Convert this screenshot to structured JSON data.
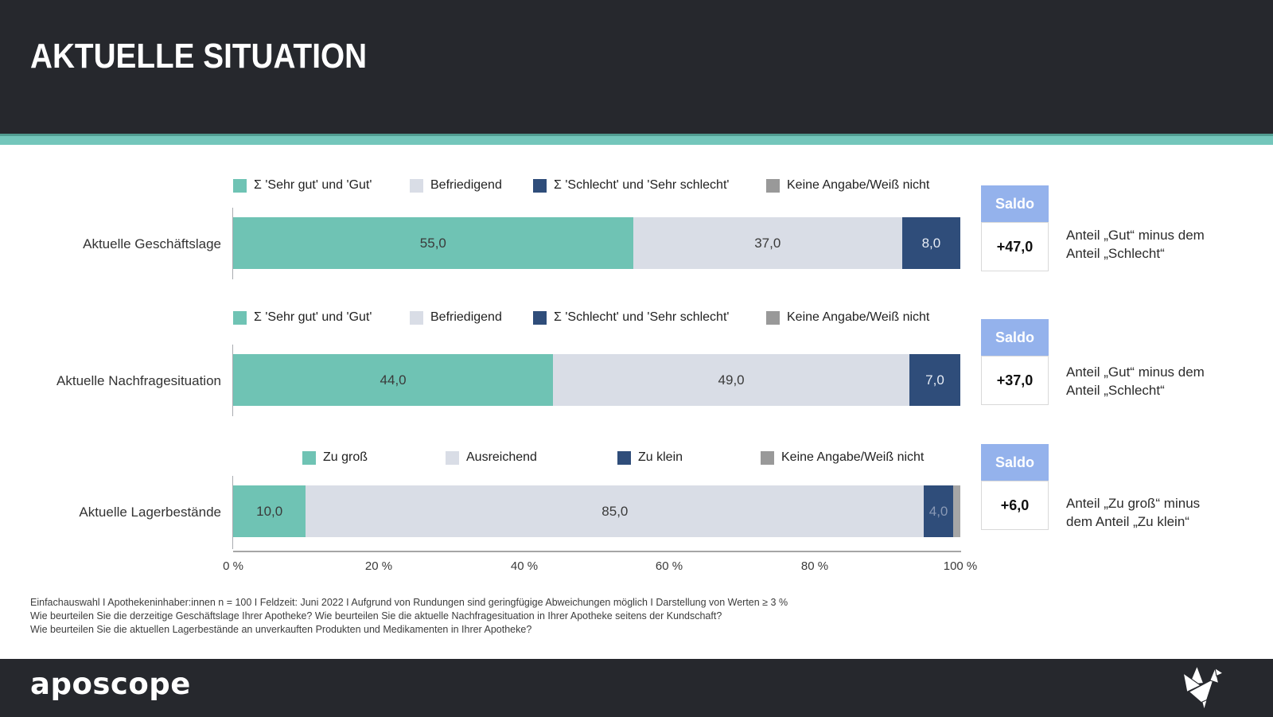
{
  "header": {
    "title": "AKTUELLE SITUATION"
  },
  "colors": {
    "header_bg": "#26282D",
    "accent_teal": "#74C6BB",
    "bar_positive": "#6FC3B4",
    "bar_neutral": "#D9DDE6",
    "bar_negative": "#2F4D7A",
    "bar_no_answer": "#A6A6A6",
    "legend_no_answer": "#999999",
    "saldo_header_bg": "#94B2EC"
  },
  "chart_data": {
    "type": "bar",
    "stacked": true,
    "orientation": "horizontal",
    "title": "AKTUELLE SITUATION",
    "x_axis": {
      "range": [
        0,
        100
      ],
      "unit": "%",
      "ticks": [
        "0 %",
        "20 %",
        "40 %",
        "60 %",
        "80 %",
        "100 %"
      ]
    },
    "rows": [
      {
        "category": "Aktuelle Geschäftslage",
        "legend": [
          {
            "label": "Σ 'Sehr gut' und 'Gut'",
            "color": "#6FC3B4"
          },
          {
            "label": "Befriedigend",
            "color": "#D9DDE6"
          },
          {
            "label": "Σ 'Schlecht' und 'Sehr schlecht'",
            "color": "#2F4D7A"
          },
          {
            "label": "Keine Angabe/Weiß nicht",
            "color": "#999999"
          }
        ],
        "segments": [
          {
            "name": "Σ 'Sehr gut' und 'Gut'",
            "value": 55,
            "label": "55,0"
          },
          {
            "name": "Befriedigend",
            "value": 37,
            "label": "37,0"
          },
          {
            "name": "Σ 'Schlecht' und 'Sehr schlecht'",
            "value": 8,
            "label": "8,0"
          }
        ],
        "saldo": {
          "header": "Saldo",
          "value": "+47,0"
        },
        "note_line1": "Anteil „Gut“ minus dem",
        "note_line2": "Anteil „Schlecht“"
      },
      {
        "category": "Aktuelle Nachfragesituation",
        "legend": [
          {
            "label": "Σ 'Sehr gut' und 'Gut'",
            "color": "#6FC3B4"
          },
          {
            "label": "Befriedigend",
            "color": "#D9DDE6"
          },
          {
            "label": "Σ 'Schlecht' und 'Sehr schlecht'",
            "color": "#2F4D7A"
          },
          {
            "label": "Keine Angabe/Weiß nicht",
            "color": "#999999"
          }
        ],
        "segments": [
          {
            "name": "Σ 'Sehr gut' und 'Gut'",
            "value": 44,
            "label": "44,0"
          },
          {
            "name": "Befriedigend",
            "value": 49,
            "label": "49,0"
          },
          {
            "name": "Σ 'Schlecht' und 'Sehr schlecht'",
            "value": 7,
            "label": "7,0"
          }
        ],
        "saldo": {
          "header": "Saldo",
          "value": "+37,0"
        },
        "note_line1": "Anteil „Gut“ minus dem",
        "note_line2": "Anteil „Schlecht“"
      },
      {
        "category": "Aktuelle Lagerbestände",
        "legend": [
          {
            "label": "Zu groß",
            "color": "#6FC3B4"
          },
          {
            "label": "Ausreichend",
            "color": "#D9DDE6"
          },
          {
            "label": "Zu klein",
            "color": "#2F4D7A"
          },
          {
            "label": "Keine Angabe/Weiß nicht",
            "color": "#999999"
          }
        ],
        "segments": [
          {
            "name": "Zu groß",
            "value": 10,
            "label": "10,0"
          },
          {
            "name": "Ausreichend",
            "value": 85,
            "label": "85,0"
          },
          {
            "name": "Zu klein",
            "value": 4,
            "label": "4,0"
          },
          {
            "name": "Keine Angabe/Weiß nicht",
            "value": 1,
            "label": ""
          }
        ],
        "saldo": {
          "header": "Saldo",
          "value": "+6,0"
        },
        "note_line1": "Anteil „Zu groß“ minus",
        "note_line2": "dem Anteil „Zu klein“"
      }
    ]
  },
  "footnotes": {
    "line1": "Einfachauswahl I Apothekeninhaber:innen n = 100 I Feldzeit: Juni 2022 I Aufgrund von Rundungen sind geringfügige Abweichungen möglich I Darstellung von Werten ≥ 3 %",
    "line2": "Wie beurteilen Sie die derzeitige Geschäftslage Ihrer Apotheke? Wie beurteilen Sie die aktuelle Nachfragesituation in Ihrer Apotheke seitens der Kundschaft?",
    "line3": "Wie beurteilen Sie die aktuellen Lagerbestände an unverkauften Produkten und Medikamenten in Ihrer Apotheke?"
  },
  "footer": {
    "logo": "aposcope",
    "icon": "origami-crane-icon"
  }
}
